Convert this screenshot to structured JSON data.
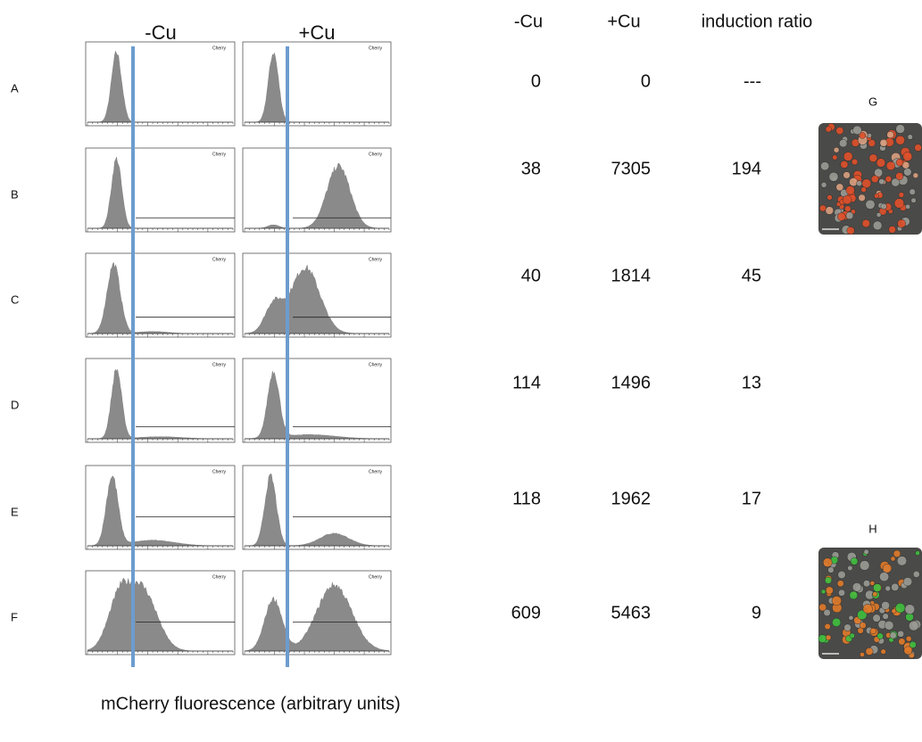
{
  "columns": {
    "minus": "-Cu",
    "plus": "+Cu"
  },
  "histogram_label": "Cherry",
  "table": {
    "headers": [
      "-Cu",
      "+Cu",
      "induction ratio"
    ],
    "rows": [
      {
        "label": "A",
        "minus": 0,
        "plus": 0,
        "ratio": "---"
      },
      {
        "label": "B",
        "minus": 38,
        "plus": 7305,
        "ratio": 194
      },
      {
        "label": "C",
        "minus": 40,
        "plus": 1814,
        "ratio": 45
      },
      {
        "label": "D",
        "minus": 114,
        "plus": 1496,
        "ratio": 13
      },
      {
        "label": "E",
        "minus": 118,
        "plus": 1962,
        "ratio": 17
      },
      {
        "label": "F",
        "minus": 609,
        "plus": 5463,
        "ratio": 9
      }
    ]
  },
  "images": [
    {
      "label": "G"
    },
    {
      "label": "H"
    }
  ],
  "x_axis_label": "mCherry fluorescence (arbitrary units)"
}
